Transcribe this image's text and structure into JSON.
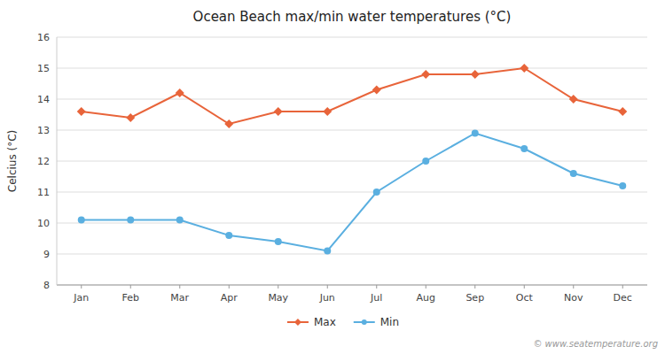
{
  "chart_data": {
    "type": "line",
    "title": "Ocean Beach max/min water temperatures (°C)",
    "y_label": "Celcius (°C)",
    "categories": [
      "Jan",
      "Feb",
      "Mar",
      "Apr",
      "May",
      "Jun",
      "Jul",
      "Aug",
      "Sep",
      "Oct",
      "Nov",
      "Dec"
    ],
    "series": [
      {
        "name": "Max",
        "color": "#E8643A",
        "marker": "diamond",
        "values": [
          13.6,
          13.4,
          14.2,
          13.2,
          13.6,
          13.6,
          14.3,
          14.8,
          14.8,
          15.0,
          14.0,
          13.6
        ]
      },
      {
        "name": "Min",
        "color": "#5AAFE0",
        "marker": "circle",
        "values": [
          10.1,
          10.1,
          10.1,
          9.6,
          9.4,
          9.1,
          11.0,
          12.0,
          12.9,
          12.4,
          11.6,
          11.2
        ]
      }
    ],
    "ylim": [
      8,
      16
    ],
    "yticks": [
      8,
      9,
      10,
      11,
      12,
      13,
      14,
      15,
      16
    ],
    "grid": true,
    "legend": "bottom",
    "annotations": [
      "© www.seatemperature.org"
    ]
  }
}
